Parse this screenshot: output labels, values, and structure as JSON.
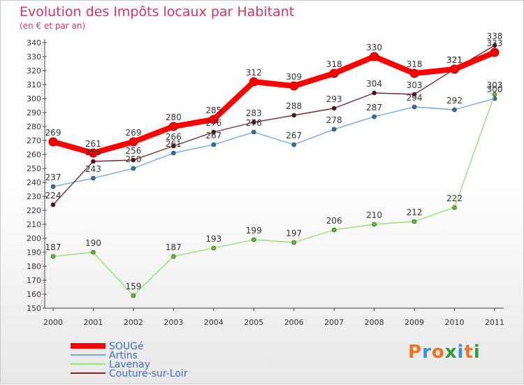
{
  "chart_data": {
    "type": "line",
    "title": "Evolution des Impôts locaux par Habitant",
    "subtitle": "(en € et par an)",
    "categories": [
      "2000",
      "2001",
      "2002",
      "2003",
      "2004",
      "2005",
      "2006",
      "2007",
      "2008",
      "2009",
      "2010",
      "2011"
    ],
    "ylim": [
      150,
      340
    ],
    "yticks": [
      150,
      160,
      170,
      180,
      190,
      200,
      210,
      220,
      230,
      240,
      250,
      260,
      270,
      280,
      290,
      300,
      310,
      320,
      330,
      340
    ],
    "grid": false,
    "legend_position": "bottom-left",
    "series": [
      {
        "name": "SOUGé",
        "color": "#ff0000",
        "marker": "#b20000",
        "values": [
          269,
          261,
          269,
          280,
          285,
          312,
          309,
          318,
          330,
          318,
          321,
          333
        ]
      },
      {
        "name": "Artins",
        "color": "#6fa8dc",
        "marker": "#2f6fb0",
        "values": [
          237,
          243,
          250,
          261,
          267,
          276,
          267,
          278,
          287,
          294,
          292,
          300
        ]
      },
      {
        "name": "Lavenay",
        "color": "#99e07a",
        "marker": "#5cbf2a",
        "values": [
          187,
          190,
          159,
          187,
          193,
          199,
          197,
          206,
          210,
          212,
          222,
          303
        ]
      },
      {
        "name": "Couture-sur-Loir",
        "color": "#7a2a2a",
        "marker": "#5a1010",
        "values": [
          224,
          255,
          256,
          266,
          276,
          283,
          288,
          293,
          304,
          303,
          321,
          338
        ]
      }
    ]
  },
  "logo": {
    "text": "Proxiti",
    "colors": [
      "#e87722",
      "#3a8fd6",
      "#e87722",
      "#2e9e3a",
      "#3a8fd6",
      "#e87722",
      "#2e9e3a"
    ]
  }
}
